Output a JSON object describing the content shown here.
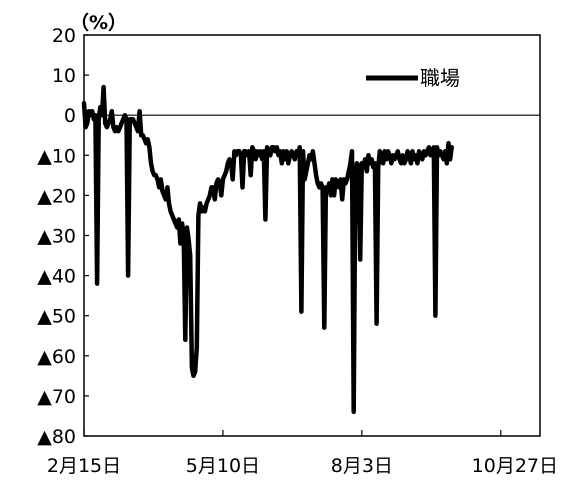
{
  "chart_data": {
    "type": "line",
    "title": "",
    "unit_label": "（%）",
    "xlabel": "",
    "ylabel": "",
    "ylim": [
      -80,
      20
    ],
    "yticks": [
      20,
      10,
      0,
      -10,
      -20,
      -30,
      -40,
      -50,
      -60,
      -70,
      -80
    ],
    "ytick_labels": [
      "20",
      "10",
      "0",
      "▲10",
      "▲20",
      "▲30",
      "▲40",
      "▲50",
      "▲60",
      "▲70",
      "▲80"
    ],
    "xlim": [
      "2020-02-15",
      "2020-11-20"
    ],
    "xticks": [
      "2020-02-15",
      "2020-05-10",
      "2020-08-03",
      "2020-10-27"
    ],
    "xtick_labels": [
      "2月15日",
      "5月10日",
      "8月3日",
      "10月27日"
    ],
    "zero_line": true,
    "grid": false,
    "legend": {
      "position": "top-right"
    },
    "series": [
      {
        "name": "職場",
        "color": "#000000",
        "points": [
          [
            "2020-02-15",
            3
          ],
          [
            "2020-02-16",
            -3
          ],
          [
            "2020-02-17",
            -2
          ],
          [
            "2020-02-18",
            1
          ],
          [
            "2020-02-19",
            0
          ],
          [
            "2020-02-20",
            1
          ],
          [
            "2020-02-21",
            -1
          ],
          [
            "2020-02-22",
            0
          ],
          [
            "2020-02-23",
            -42
          ],
          [
            "2020-02-24",
            -1
          ],
          [
            "2020-02-25",
            2
          ],
          [
            "2020-02-26",
            0
          ],
          [
            "2020-02-27",
            7
          ],
          [
            "2020-02-28",
            -2
          ],
          [
            "2020-02-29",
            -3
          ],
          [
            "2020-03-01",
            -2
          ],
          [
            "2020-03-02",
            -1
          ],
          [
            "2020-03-03",
            1
          ],
          [
            "2020-03-04",
            -3
          ],
          [
            "2020-03-05",
            -4
          ],
          [
            "2020-03-06",
            -3
          ],
          [
            "2020-03-07",
            -4
          ],
          [
            "2020-03-08",
            -3
          ],
          [
            "2020-03-09",
            -2
          ],
          [
            "2020-03-10",
            -1
          ],
          [
            "2020-03-11",
            0
          ],
          [
            "2020-03-12",
            -1
          ],
          [
            "2020-03-13",
            -40
          ],
          [
            "2020-03-14",
            -1
          ],
          [
            "2020-03-15",
            -1
          ],
          [
            "2020-03-16",
            -1
          ],
          [
            "2020-03-17",
            -2
          ],
          [
            "2020-03-18",
            -3
          ],
          [
            "2020-03-19",
            -4
          ],
          [
            "2020-03-20",
            1
          ],
          [
            "2020-03-21",
            -5
          ],
          [
            "2020-03-22",
            -5
          ],
          [
            "2020-03-23",
            -6
          ],
          [
            "2020-03-24",
            -7
          ],
          [
            "2020-03-25",
            -6
          ],
          [
            "2020-03-26",
            -8
          ],
          [
            "2020-03-27",
            -12
          ],
          [
            "2020-03-28",
            -14
          ],
          [
            "2020-03-29",
            -15
          ],
          [
            "2020-03-30",
            -15
          ],
          [
            "2020-03-31",
            -16
          ],
          [
            "2020-04-01",
            -18
          ],
          [
            "2020-04-02",
            -16
          ],
          [
            "2020-04-03",
            -19
          ],
          [
            "2020-04-04",
            -20
          ],
          [
            "2020-04-05",
            -21
          ],
          [
            "2020-04-06",
            -18
          ],
          [
            "2020-04-07",
            -22
          ],
          [
            "2020-04-08",
            -24
          ],
          [
            "2020-04-09",
            -25
          ],
          [
            "2020-04-10",
            -26
          ],
          [
            "2020-04-11",
            -27
          ],
          [
            "2020-04-12",
            -28
          ],
          [
            "2020-04-13",
            -26
          ],
          [
            "2020-04-14",
            -32
          ],
          [
            "2020-04-15",
            -27
          ],
          [
            "2020-04-16",
            -30
          ],
          [
            "2020-04-17",
            -56
          ],
          [
            "2020-04-18",
            -28
          ],
          [
            "2020-04-19",
            -31
          ],
          [
            "2020-04-20",
            -35
          ],
          [
            "2020-04-21",
            -63
          ],
          [
            "2020-04-22",
            -65
          ],
          [
            "2020-04-23",
            -64
          ],
          [
            "2020-04-24",
            -58
          ],
          [
            "2020-04-25",
            -25
          ],
          [
            "2020-04-26",
            -22
          ],
          [
            "2020-04-27",
            -24
          ],
          [
            "2020-04-28",
            -23
          ],
          [
            "2020-04-29",
            -24
          ],
          [
            "2020-04-30",
            -22
          ],
          [
            "2020-05-01",
            -21
          ],
          [
            "2020-05-02",
            -20
          ],
          [
            "2020-05-03",
            -18
          ],
          [
            "2020-05-04",
            -18
          ],
          [
            "2020-05-05",
            -21
          ],
          [
            "2020-05-06",
            -17
          ],
          [
            "2020-05-07",
            -16
          ],
          [
            "2020-05-08",
            -17
          ],
          [
            "2020-05-09",
            -20
          ],
          [
            "2020-05-10",
            -16
          ],
          [
            "2020-05-11",
            -15
          ],
          [
            "2020-05-12",
            -14
          ],
          [
            "2020-05-13",
            -12
          ],
          [
            "2020-05-14",
            -11
          ],
          [
            "2020-05-15",
            -12
          ],
          [
            "2020-05-16",
            -16
          ],
          [
            "2020-05-17",
            -9
          ],
          [
            "2020-05-18",
            -10
          ],
          [
            "2020-05-19",
            -9
          ],
          [
            "2020-05-20",
            -9
          ],
          [
            "2020-05-21",
            -10
          ],
          [
            "2020-05-22",
            -18
          ],
          [
            "2020-05-23",
            -9
          ],
          [
            "2020-05-24",
            -9
          ],
          [
            "2020-05-25",
            -10
          ],
          [
            "2020-05-26",
            -9
          ],
          [
            "2020-05-27",
            -15
          ],
          [
            "2020-05-28",
            -8
          ],
          [
            "2020-05-29",
            -9
          ],
          [
            "2020-05-30",
            -11
          ],
          [
            "2020-05-31",
            -9
          ],
          [
            "2020-06-01",
            -10
          ],
          [
            "2020-06-02",
            -9
          ],
          [
            "2020-06-03",
            -11
          ],
          [
            "2020-06-04",
            -9
          ],
          [
            "2020-06-05",
            -26
          ],
          [
            "2020-06-06",
            -8
          ],
          [
            "2020-06-07",
            -9
          ],
          [
            "2020-06-08",
            -10
          ],
          [
            "2020-06-09",
            -8
          ],
          [
            "2020-06-10",
            -8
          ],
          [
            "2020-06-11",
            -9
          ],
          [
            "2020-06-12",
            -8
          ],
          [
            "2020-06-13",
            -10
          ],
          [
            "2020-06-14",
            -9
          ],
          [
            "2020-06-15",
            -12
          ],
          [
            "2020-06-16",
            -9
          ],
          [
            "2020-06-17",
            -11
          ],
          [
            "2020-06-18",
            -9
          ],
          [
            "2020-06-19",
            -12
          ],
          [
            "2020-06-20",
            -10
          ],
          [
            "2020-06-21",
            -9
          ],
          [
            "2020-06-22",
            -10
          ],
          [
            "2020-06-23",
            -11
          ],
          [
            "2020-06-24",
            -9
          ],
          [
            "2020-06-25",
            -10
          ],
          [
            "2020-06-26",
            -8
          ],
          [
            "2020-06-27",
            -49
          ],
          [
            "2020-06-28",
            -9
          ],
          [
            "2020-06-29",
            -16
          ],
          [
            "2020-06-30",
            -14
          ],
          [
            "2020-07-01",
            -12
          ],
          [
            "2020-07-02",
            -10
          ],
          [
            "2020-07-03",
            -11
          ],
          [
            "2020-07-04",
            -9
          ],
          [
            "2020-07-05",
            -12
          ],
          [
            "2020-07-06",
            -15
          ],
          [
            "2020-07-07",
            -17
          ],
          [
            "2020-07-08",
            -18
          ],
          [
            "2020-07-09",
            -17
          ],
          [
            "2020-07-10",
            -18
          ],
          [
            "2020-07-11",
            -53
          ],
          [
            "2020-07-12",
            -18
          ],
          [
            "2020-07-13",
            -19
          ],
          [
            "2020-07-14",
            -17
          ],
          [
            "2020-07-15",
            -20
          ],
          [
            "2020-07-16",
            -16
          ],
          [
            "2020-07-17",
            -20
          ],
          [
            "2020-07-18",
            -16
          ],
          [
            "2020-07-19",
            -17
          ],
          [
            "2020-07-20",
            -18
          ],
          [
            "2020-07-21",
            -16
          ],
          [
            "2020-07-22",
            -21
          ],
          [
            "2020-07-23",
            -16
          ],
          [
            "2020-07-24",
            -17
          ],
          [
            "2020-07-25",
            -16
          ],
          [
            "2020-07-26",
            -14
          ],
          [
            "2020-07-27",
            -12
          ],
          [
            "2020-07-28",
            -9
          ],
          [
            "2020-07-29",
            -74
          ],
          [
            "2020-07-30",
            -16
          ],
          [
            "2020-07-31",
            -12
          ],
          [
            "2020-08-01",
            -13
          ],
          [
            "2020-08-02",
            -36
          ],
          [
            "2020-08-03",
            -12
          ],
          [
            "2020-08-04",
            -13
          ],
          [
            "2020-08-05",
            -11
          ],
          [
            "2020-08-06",
            -14
          ],
          [
            "2020-08-07",
            -10
          ],
          [
            "2020-08-08",
            -12
          ],
          [
            "2020-08-09",
            -11
          ],
          [
            "2020-08-10",
            -13
          ],
          [
            "2020-08-11",
            -12
          ],
          [
            "2020-08-12",
            -52
          ],
          [
            "2020-08-13",
            -13
          ],
          [
            "2020-08-14",
            -9
          ],
          [
            "2020-08-15",
            -10
          ],
          [
            "2020-08-16",
            -12
          ],
          [
            "2020-08-17",
            -9
          ],
          [
            "2020-08-18",
            -11
          ],
          [
            "2020-08-19",
            -9
          ],
          [
            "2020-08-20",
            -10
          ],
          [
            "2020-08-21",
            -12
          ],
          [
            "2020-08-22",
            -10
          ],
          [
            "2020-08-23",
            -11
          ],
          [
            "2020-08-24",
            -10
          ],
          [
            "2020-08-25",
            -9
          ],
          [
            "2020-08-26",
            -11
          ],
          [
            "2020-08-27",
            -12
          ],
          [
            "2020-08-28",
            -10
          ],
          [
            "2020-08-29",
            -12
          ],
          [
            "2020-08-30",
            -11
          ],
          [
            "2020-08-31",
            -9
          ],
          [
            "2020-09-01",
            -10
          ],
          [
            "2020-09-02",
            -12
          ],
          [
            "2020-09-03",
            -9
          ],
          [
            "2020-09-04",
            -11
          ],
          [
            "2020-09-05",
            -10
          ],
          [
            "2020-09-06",
            -12
          ],
          [
            "2020-09-07",
            -9
          ],
          [
            "2020-09-08",
            -10
          ],
          [
            "2020-09-09",
            -11
          ],
          [
            "2020-09-10",
            -9
          ],
          [
            "2020-09-11",
            -10
          ],
          [
            "2020-09-12",
            -9
          ],
          [
            "2020-09-13",
            -8
          ],
          [
            "2020-09-14",
            -10
          ],
          [
            "2020-09-15",
            -9
          ],
          [
            "2020-09-16",
            -8
          ],
          [
            "2020-09-17",
            -50
          ],
          [
            "2020-09-18",
            -8
          ],
          [
            "2020-09-19",
            -10
          ],
          [
            "2020-09-20",
            -9
          ],
          [
            "2020-09-21",
            -10
          ],
          [
            "2020-09-22",
            -11
          ],
          [
            "2020-09-23",
            -9
          ],
          [
            "2020-09-24",
            -12
          ],
          [
            "2020-09-25",
            -7
          ],
          [
            "2020-09-26",
            -11
          ],
          [
            "2020-09-27",
            -8
          ]
        ]
      }
    ]
  }
}
